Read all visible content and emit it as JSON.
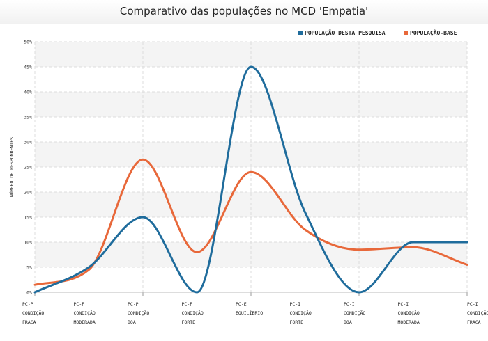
{
  "chart_data": {
    "type": "line",
    "title": "Comparativo das populações no MCD 'Empatia'",
    "xlabel": "",
    "ylabel": "NÚMERO DE RESPONDENTES",
    "ylim": [
      0,
      50
    ],
    "yticks": [
      "0%",
      "5%",
      "10%",
      "15%",
      "20%",
      "25%",
      "30%",
      "35%",
      "40%",
      "45%",
      "50%"
    ],
    "grid": true,
    "legend_position": "top-right",
    "categories": [
      [
        "PC-P",
        "CONDIÇÃO",
        "FRACA"
      ],
      [
        "PC-P",
        "CONDIÇÃO",
        "MODERADA"
      ],
      [
        "PC-P",
        "CONDIÇÃO",
        "BOA"
      ],
      [
        "PC-P",
        "CONDIÇÃO",
        "FORTE"
      ],
      [
        "PC-E",
        "EQUILÍBRIO"
      ],
      [
        "PC-I",
        "CONDIÇÃO",
        "FORTE"
      ],
      [
        "PC-I",
        "CONDIÇÃO",
        "BOA"
      ],
      [
        "PC-I",
        "CONDIÇÃO",
        "MODERADA"
      ],
      [
        "PC-I",
        "CONDIÇÃO",
        "FRACA"
      ]
    ],
    "series": [
      {
        "name": "POPULAÇÃO DESTA PESQUISA",
        "color": "#1f6c9c",
        "values": [
          0,
          5,
          15,
          0,
          45,
          16,
          0,
          10,
          10
        ]
      },
      {
        "name": "POPULAÇÃO-BASE",
        "color": "#e8683a",
        "values": [
          1.5,
          4.5,
          26.5,
          8,
          24,
          12.5,
          8.5,
          9,
          5.5
        ]
      }
    ]
  }
}
